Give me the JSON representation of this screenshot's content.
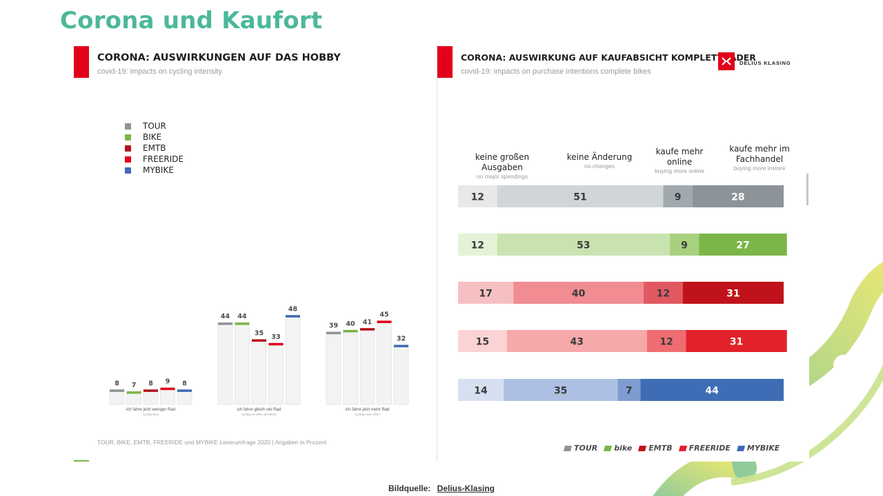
{
  "slide": {
    "title": "Corona und Kaufort",
    "source_label": "Bildquelle:",
    "source_link": "Delius-Klasing"
  },
  "colors": {
    "accent_red": "#e3001b",
    "title_green": "#4cb89a"
  },
  "left_panel": {
    "title": "CORONA: AUSWIRKUNGEN AUF DAS HOBBY",
    "subtitle": "covid-19: impacts on cycling intensity",
    "footnote": "TOUR, BIKE, EMTB, FREERIDE und MYBIKE Leserumfrage 2020 | Angaben in Prozent"
  },
  "right_panel": {
    "title": "CORONA: AUSWIRKUNG AUF KAUFABSICHT KOMPLETTRÄDER",
    "subtitle": "covid-19: impacts on purchase intentions complete bikes",
    "logo_text": "DELIUS KLASING",
    "columns": [
      {
        "label": "keine großen Ausgaben",
        "sub": "no major spendings"
      },
      {
        "label": "keine Änderung",
        "sub": "no changes"
      },
      {
        "label": "kaufe mehr online",
        "sub": "buying more online"
      },
      {
        "label": "kaufe mehr im Fachhandel",
        "sub": "buying more instore"
      }
    ],
    "brands": [
      "TOUR",
      "bike",
      "EMTB",
      "FREERIDE",
      "MYBIKE"
    ]
  },
  "chart_data": [
    {
      "type": "bar",
      "title": "CORONA: AUSWIRKUNGEN AUF DAS HOBBY",
      "subtitle": "covid-19: impacts on cycling intensity",
      "categories": [
        {
          "label": "ich fahre jetzt weniger Rad",
          "sub": "cycling less"
        },
        {
          "label": "ich fahre gleich viel Rad",
          "sub": "cycling as often as before"
        },
        {
          "label": "ich fahre jetzt mehr Rad",
          "sub": "cycling more often"
        }
      ],
      "series": [
        {
          "name": "TOUR",
          "color": "#8c9399",
          "values": [
            8,
            44,
            39
          ]
        },
        {
          "name": "BIKE",
          "color": "#7ab648",
          "values": [
            7,
            44,
            40
          ]
        },
        {
          "name": "EMTB",
          "color": "#b5121b",
          "values": [
            8,
            35,
            41
          ]
        },
        {
          "name": "FREERIDE",
          "color": "#e3001b",
          "values": [
            9,
            33,
            45
          ]
        },
        {
          "name": "MYBIKE",
          "color": "#3f6db5",
          "values": [
            8,
            48,
            32
          ]
        }
      ],
      "ylim": [
        0,
        100
      ],
      "legend": "top-left"
    },
    {
      "type": "bar",
      "stacked": true,
      "orientation": "horizontal",
      "title": "CORONA: AUSWIRKUNG AUF KAUFABSICHT KOMPLETTRÄDER",
      "subtitle": "covid-19: impacts on purchase intentions complete bikes",
      "segments": [
        "keine großen Ausgaben",
        "keine Änderung",
        "kaufe mehr online",
        "kaufe mehr im Fachhandel"
      ],
      "rows": [
        {
          "name": "TOUR",
          "values": [
            12,
            51,
            9,
            28
          ],
          "colors": [
            "#e6e8ea",
            "#d0d5d8",
            "#a2a9ae",
            "#8c9399"
          ]
        },
        {
          "name": "BIKE",
          "values": [
            12,
            53,
            9,
            27
          ],
          "colors": [
            "#e5f2d8",
            "#c9e3b0",
            "#a8d17f",
            "#7ab648"
          ]
        },
        {
          "name": "EMTB",
          "values": [
            17,
            40,
            12,
            31
          ],
          "colors": [
            "#f6c0c3",
            "#f08c92",
            "#e25861",
            "#c0121a"
          ]
        },
        {
          "name": "FREERIDE",
          "values": [
            15,
            43,
            12,
            31
          ],
          "colors": [
            "#fbd3d4",
            "#f7a8ab",
            "#ef6d72",
            "#e3212b"
          ]
        },
        {
          "name": "MYBIKE",
          "values": [
            14,
            35,
            7,
            44
          ],
          "colors": [
            "#d6e0f0",
            "#adc0e3",
            "#7e9ccf",
            "#3f6db5"
          ]
        }
      ],
      "legend": "bottom"
    }
  ]
}
